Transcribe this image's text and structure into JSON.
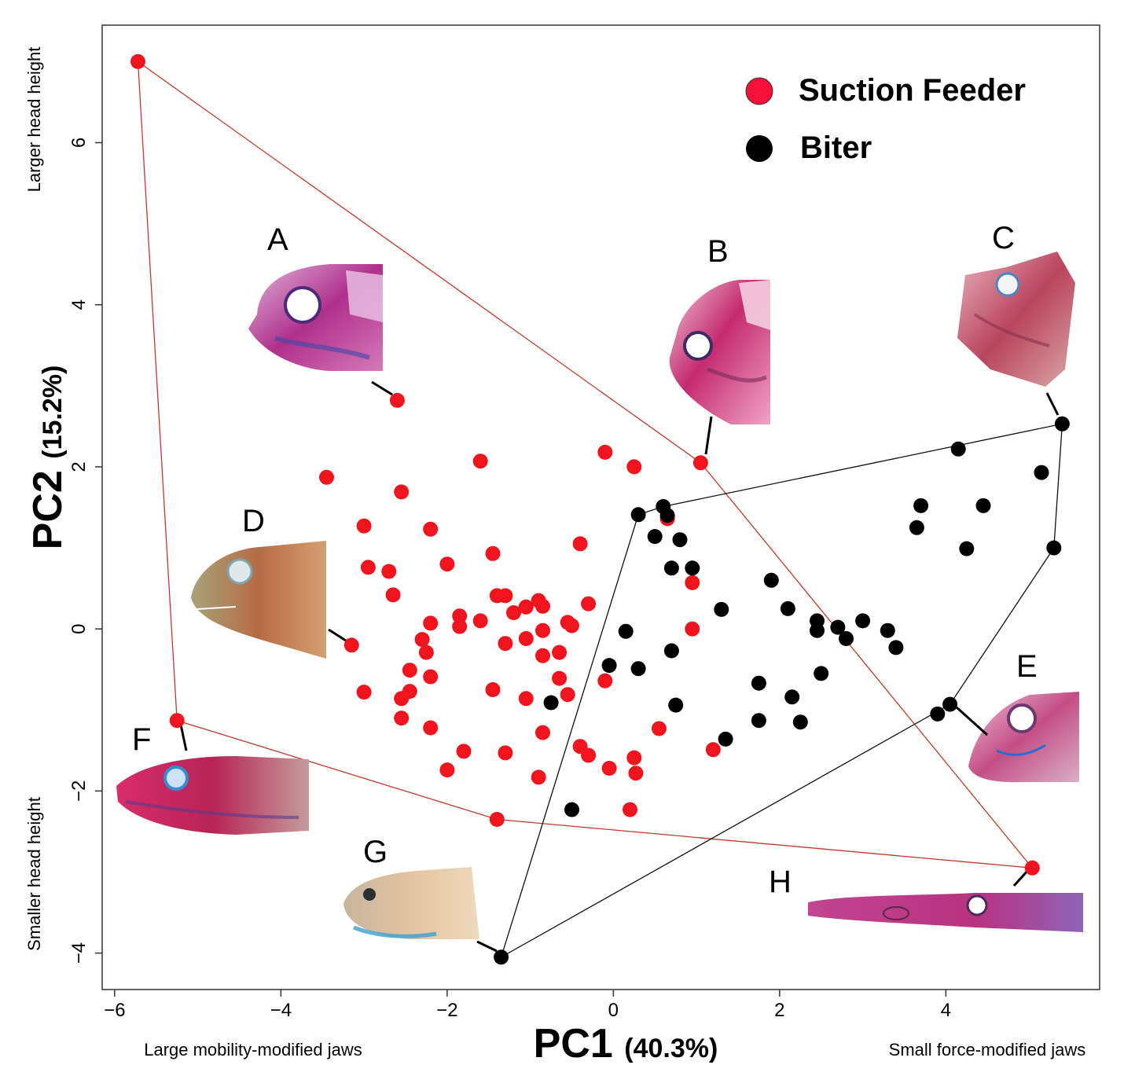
{
  "chart_data": {
    "type": "scatter",
    "xaxis": {
      "label_main": "PC1",
      "label_pct": "(40.3%)",
      "ticks": [
        -6,
        -4,
        -2,
        0,
        2,
        4
      ],
      "tick_labels": [
        "−6",
        "−4",
        "−2",
        "0",
        "2",
        "4"
      ],
      "range": [
        -6.15,
        5.85
      ],
      "left_note": "Large mobility-modified jaws",
      "right_note": "Small force-modified jaws"
    },
    "yaxis": {
      "label_main": "PC2",
      "label_pct": "(15.2%)",
      "ticks": [
        -4,
        -2,
        0,
        2,
        4,
        6
      ],
      "tick_labels": [
        "−4",
        "−2",
        "0",
        "2",
        "4",
        "6"
      ],
      "range": [
        -4.45,
        7.45
      ],
      "top_note": "Larger head height",
      "bottom_note": "Smaller head height"
    },
    "grid": false,
    "legend": {
      "position": "top-right",
      "entries": [
        {
          "label": "Suction Feeder",
          "color": "#ff0000"
        },
        {
          "label": "Biter",
          "color": "#000000"
        }
      ]
    },
    "series": [
      {
        "name": "Suction Feeder",
        "color": "#ff0000",
        "hull": [
          [
            -5.72,
            7.0
          ],
          [
            1.05,
            2.05
          ],
          [
            5.04,
            -2.95
          ],
          [
            -1.4,
            -2.35
          ],
          [
            -5.25,
            -1.13
          ]
        ],
        "points": [
          [
            -5.72,
            7.0
          ],
          [
            -2.6,
            2.82
          ],
          [
            1.05,
            2.05
          ],
          [
            -5.25,
            -1.13
          ],
          [
            -1.4,
            -2.35
          ],
          [
            5.04,
            -2.95
          ],
          [
            -3.45,
            1.87
          ],
          [
            -1.6,
            2.07
          ],
          [
            -0.1,
            2.18
          ],
          [
            0.25,
            2.0
          ],
          [
            -2.55,
            1.69
          ],
          [
            -3.0,
            1.27
          ],
          [
            -2.2,
            1.23
          ],
          [
            -0.4,
            1.05
          ],
          [
            -2.95,
            0.76
          ],
          [
            -2.7,
            0.71
          ],
          [
            -2.0,
            0.8
          ],
          [
            -1.45,
            0.93
          ],
          [
            -2.65,
            0.42
          ],
          [
            -1.4,
            0.41
          ],
          [
            -1.3,
            0.41
          ],
          [
            -0.9,
            0.35
          ],
          [
            -1.05,
            0.27
          ],
          [
            -0.85,
            0.28
          ],
          [
            -0.3,
            0.31
          ],
          [
            -1.2,
            0.2
          ],
          [
            -1.85,
            0.16
          ],
          [
            -1.6,
            0.1
          ],
          [
            -2.2,
            0.07
          ],
          [
            -1.85,
            0.03
          ],
          [
            -0.55,
            0.08
          ],
          [
            -0.5,
            0.04
          ],
          [
            -0.85,
            -0.02
          ],
          [
            -1.05,
            -0.12
          ],
          [
            -2.3,
            -0.13
          ],
          [
            -1.3,
            -0.18
          ],
          [
            -2.25,
            -0.29
          ],
          [
            -0.85,
            -0.33
          ],
          [
            -0.65,
            -0.29
          ],
          [
            -3.15,
            -0.2
          ],
          [
            -2.45,
            -0.51
          ],
          [
            -2.2,
            -0.59
          ],
          [
            -0.65,
            -0.61
          ],
          [
            -3.0,
            -0.78
          ],
          [
            -2.45,
            -0.77
          ],
          [
            -1.45,
            -0.75
          ],
          [
            -2.55,
            -0.86
          ],
          [
            -1.05,
            -0.86
          ],
          [
            -0.55,
            -0.81
          ],
          [
            -2.55,
            -1.1
          ],
          [
            -2.2,
            -1.22
          ],
          [
            -0.85,
            -1.28
          ],
          [
            -1.8,
            -1.51
          ],
          [
            -1.3,
            -1.53
          ],
          [
            -0.4,
            -1.45
          ],
          [
            -0.3,
            -1.56
          ],
          [
            -2.0,
            -1.74
          ],
          [
            -0.05,
            -1.72
          ],
          [
            0.25,
            -1.59
          ],
          [
            0.27,
            -1.78
          ],
          [
            -0.9,
            -1.83
          ],
          [
            0.2,
            -2.23
          ],
          [
            -0.1,
            -0.64
          ],
          [
            0.55,
            -1.23
          ],
          [
            1.2,
            -1.49
          ],
          [
            0.65,
            1.36
          ],
          [
            0.95,
            0.57
          ],
          [
            0.95,
            0.0
          ]
        ]
      },
      {
        "name": "Biter",
        "color": "#000000",
        "hull": [
          [
            5.4,
            2.53
          ],
          [
            5.3,
            1.0
          ],
          [
            4.05,
            -0.93
          ],
          [
            -1.35,
            -4.05
          ],
          [
            0.3,
            1.41
          ],
          [
            0.6,
            1.51
          ]
        ],
        "points": [
          [
            0.3,
            1.41
          ],
          [
            0.6,
            1.51
          ],
          [
            0.65,
            1.4
          ],
          [
            0.5,
            1.14
          ],
          [
            0.8,
            1.1
          ],
          [
            0.7,
            0.75
          ],
          [
            0.95,
            0.75
          ],
          [
            1.9,
            0.6
          ],
          [
            1.3,
            0.24
          ],
          [
            2.1,
            0.25
          ],
          [
            2.45,
            0.1
          ],
          [
            2.7,
            0.02
          ],
          [
            3.0,
            0.1
          ],
          [
            2.45,
            -0.02
          ],
          [
            2.8,
            -0.12
          ],
          [
            3.3,
            -0.02
          ],
          [
            3.4,
            -0.23
          ],
          [
            0.15,
            -0.03
          ],
          [
            0.7,
            -0.27
          ],
          [
            0.3,
            -0.49
          ],
          [
            -0.05,
            -0.45
          ],
          [
            2.5,
            -0.55
          ],
          [
            1.75,
            -0.67
          ],
          [
            2.15,
            -0.84
          ],
          [
            0.75,
            -0.94
          ],
          [
            1.75,
            -1.13
          ],
          [
            2.25,
            -1.15
          ],
          [
            1.35,
            -1.36
          ],
          [
            -0.75,
            -0.91
          ],
          [
            -0.5,
            -2.23
          ],
          [
            -1.35,
            -4.05
          ],
          [
            3.9,
            -1.05
          ],
          [
            4.05,
            -0.93
          ],
          [
            5.4,
            2.53
          ],
          [
            4.15,
            2.22
          ],
          [
            5.15,
            1.93
          ],
          [
            3.7,
            1.52
          ],
          [
            4.45,
            1.52
          ],
          [
            3.65,
            1.25
          ],
          [
            4.25,
            0.99
          ],
          [
            5.3,
            1.0
          ]
        ]
      }
    ],
    "specimens": [
      {
        "label": "A",
        "x": -2.6,
        "y": 2.82
      },
      {
        "label": "B",
        "x": 1.05,
        "y": 2.05
      },
      {
        "label": "C",
        "x": 5.4,
        "y": 2.53
      },
      {
        "label": "D",
        "x": -3.15,
        "y": -0.2
      },
      {
        "label": "E",
        "x": 4.05,
        "y": -0.93
      },
      {
        "label": "F",
        "x": -5.25,
        "y": -1.13
      },
      {
        "label": "G",
        "x": -1.35,
        "y": -4.05
      },
      {
        "label": "H",
        "x": 5.04,
        "y": -2.95
      }
    ]
  }
}
